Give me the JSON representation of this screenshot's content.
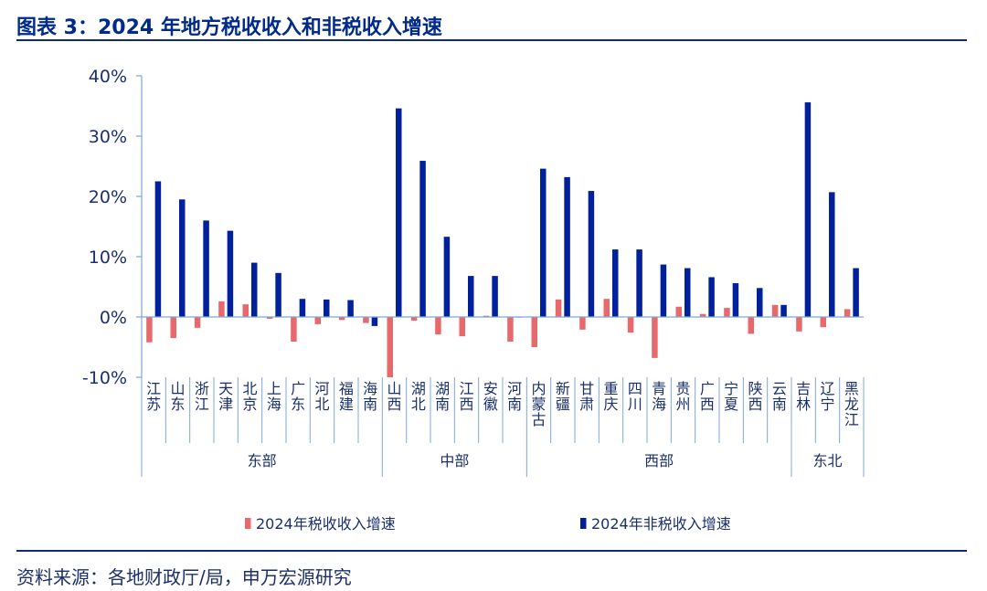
{
  "header": {
    "title": "图表 3：2024 年地方税收收入和非税收入增速"
  },
  "footer": {
    "source": "资料来源：各地财政厅/局，申万宏源研究"
  },
  "chart_data": {
    "type": "bar",
    "y_ticks": [
      "40%",
      "30%",
      "20%",
      "10%",
      "0%",
      "-10%"
    ],
    "ylim": [
      -10,
      40
    ],
    "categories": [
      "江苏",
      "山东",
      "浙江",
      "天津",
      "北京",
      "上海",
      "广东",
      "河北",
      "福建",
      "海南",
      "山西",
      "湖北",
      "湖南",
      "江西",
      "安徽",
      "河南",
      "内蒙古",
      "新疆",
      "甘肃",
      "重庆",
      "四川",
      "青海",
      "贵州",
      "广西",
      "宁夏",
      "陕西",
      "云南",
      "吉林",
      "辽宁",
      "黑龙江"
    ],
    "groups": [
      {
        "name": "东部",
        "count": 10
      },
      {
        "name": "中部",
        "count": 6
      },
      {
        "name": "西部",
        "count": 11
      },
      {
        "name": "东北",
        "count": 3
      }
    ],
    "series": [
      {
        "name": "2024年税收收入增速",
        "color": "#e8696b",
        "values": [
          -4.2,
          -3.5,
          -1.8,
          2.6,
          2.1,
          -0.3,
          -4.1,
          -1.2,
          -0.5,
          -1.0,
          -10.0,
          -0.6,
          -2.9,
          -3.2,
          0.2,
          -4.1,
          -5.0,
          2.9,
          -2.1,
          3.0,
          -2.6,
          -6.8,
          1.7,
          0.5,
          1.5,
          -2.8,
          2.0,
          -2.4,
          -1.7,
          1.3
        ]
      },
      {
        "name": "2024年非税收入增速",
        "color": "#00209c",
        "values": [
          22.5,
          19.5,
          16.0,
          14.3,
          9.0,
          7.3,
          3.0,
          2.9,
          2.8,
          -1.5,
          34.6,
          25.9,
          13.3,
          6.8,
          6.8,
          0.0,
          24.6,
          23.2,
          20.9,
          11.2,
          11.2,
          8.7,
          8.1,
          6.6,
          5.6,
          4.8,
          2.0,
          35.6,
          20.7,
          8.1
        ]
      }
    ],
    "legend_position": "bottom"
  }
}
